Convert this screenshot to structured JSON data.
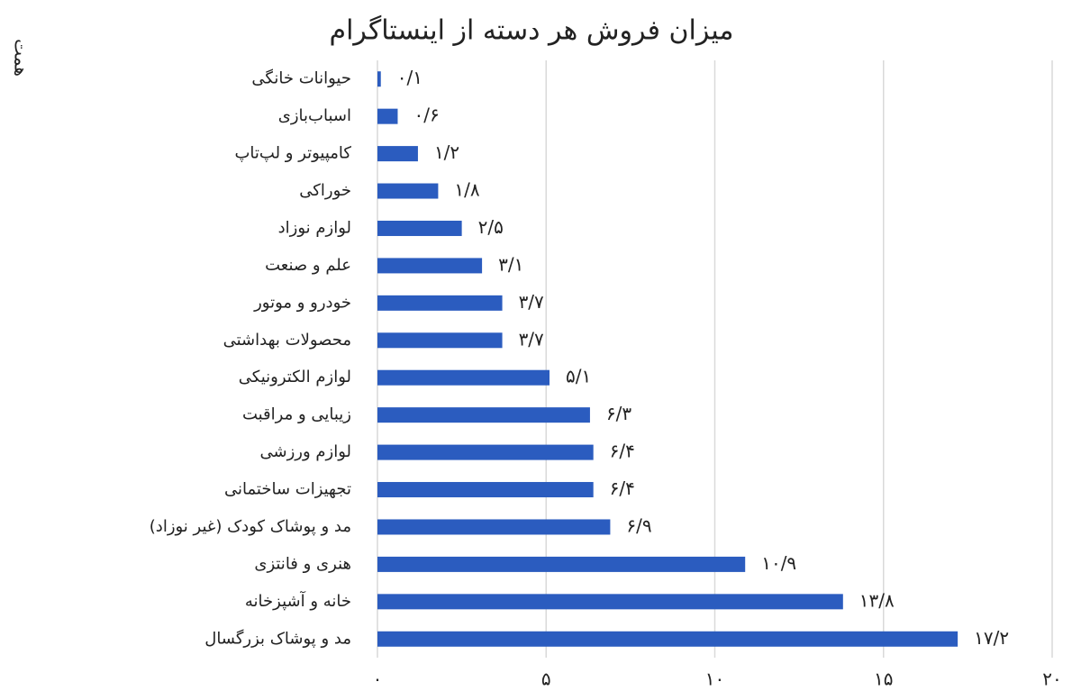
{
  "chart_data": {
    "type": "barh",
    "title": "میزان فروش هر دسته از اینستاگرام",
    "y_axis_label": "همت",
    "categories": [
      "حیوانات خانگی",
      "اسباب‌بازی",
      "کامپیوتر و لپ‌تاپ",
      "خوراکی",
      "لوازم نوزاد",
      "علم و صنعت",
      "خودرو و موتور",
      "محصولات بهداشتی",
      "لوازم الکترونیکی",
      "زیبایی و مراقبت",
      "لوازم ورزشی",
      "تجهیزات ساختمانی",
      "مد و پوشاک کودک (غیر نوزاد)",
      "هنری و فانتزی",
      "خانه و آشپزخانه",
      "مد و پوشاک بزرگسال"
    ],
    "values": [
      0.1,
      0.6,
      1.2,
      1.8,
      2.5,
      3.1,
      3.7,
      3.7,
      5.1,
      6.3,
      6.4,
      6.4,
      6.9,
      10.9,
      13.8,
      17.2
    ],
    "value_labels": [
      "۰/۱",
      "۰/۶",
      "۱/۲",
      "۱/۸",
      "۲/۵",
      "۳/۱",
      "۳/۷",
      "۳/۷",
      "۵/۱",
      "۶/۳",
      "۶/۴",
      "۶/۴",
      "۶/۹",
      "۱۰/۹",
      "۱۳/۸",
      "۱۷/۲"
    ],
    "color": "#2b5cbf",
    "xlim": [
      0,
      20
    ],
    "xticks": [
      {
        "value": 0,
        "label": "۰"
      },
      {
        "value": 5,
        "label": "۵"
      },
      {
        "value": 10,
        "label": "۱۰"
      },
      {
        "value": 15,
        "label": "۱۵"
      },
      {
        "value": 20,
        "label": "۲۰"
      }
    ],
    "grid": true
  }
}
